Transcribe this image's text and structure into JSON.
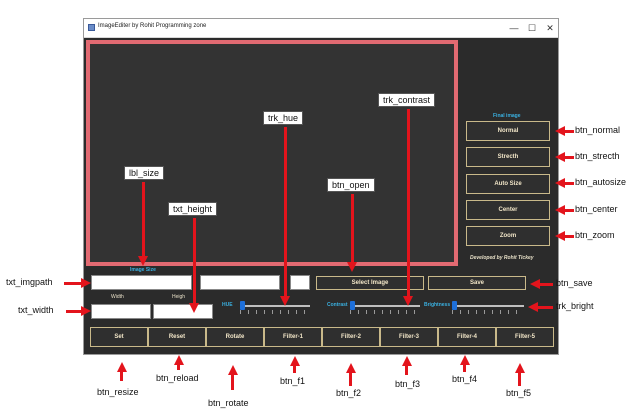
{
  "window": {
    "title": "ImageEditer by Rohit Programming zone",
    "minimize": "—",
    "maximize": "☐",
    "close": "✕"
  },
  "right_panel": {
    "heading": "Final image",
    "buttons": [
      "Normal",
      "Strecth",
      "Auto Size",
      "Center",
      "Zoom"
    ],
    "credit": "Developed by Rohit Tickey"
  },
  "form": {
    "image_size_label": "Image Size",
    "width_label": "Width",
    "height_label": "Heigh",
    "select_image_label": "Select Image",
    "save_label": "Save",
    "hue_label": "HUE",
    "contrast_label": "Contrast",
    "brightness_label": "Brightness"
  },
  "sliders": {
    "hue": 0.0,
    "contrast": 0.0,
    "brightness": 0.0
  },
  "bottom_buttons": [
    "Set",
    "Reset",
    "Rotate",
    "Filter-1",
    "Filter-2",
    "Filter-3",
    "Filter-4",
    "Filter-5"
  ],
  "annotations": {
    "lbl_size": "lbl_size",
    "txt_height": "txt_height",
    "trk_hue": "trk_hue",
    "btn_open": "btn_open",
    "trk_contrast": "trk_contrast",
    "btn_normal": "btn_normal",
    "btn_strecth": "btn_strecth",
    "btn_autosize": "btn_autosize",
    "btn_center": "btn_center",
    "btn_zoom": "btn_zoom",
    "txt_imgpath": "txt_imgpath",
    "btn_save": "btn_save",
    "txt_width": "txt_width",
    "trk_bright": "trk_bright",
    "btn_resize": "btn_resize",
    "btn_reload": "btn_reload",
    "btn_rotate": "btn_rotate",
    "btn_f1": "btn_f1",
    "btn_f2": "btn_f2",
    "btn_f3": "btn_f3",
    "btn_f4": "btn_f4",
    "btn_f5": "btn_f5"
  },
  "colors": {
    "accent": "#e3141c",
    "canvas_border": "#e26a72",
    "button_border": "#c9b98a",
    "slider_thumb": "#1e6fd9"
  }
}
